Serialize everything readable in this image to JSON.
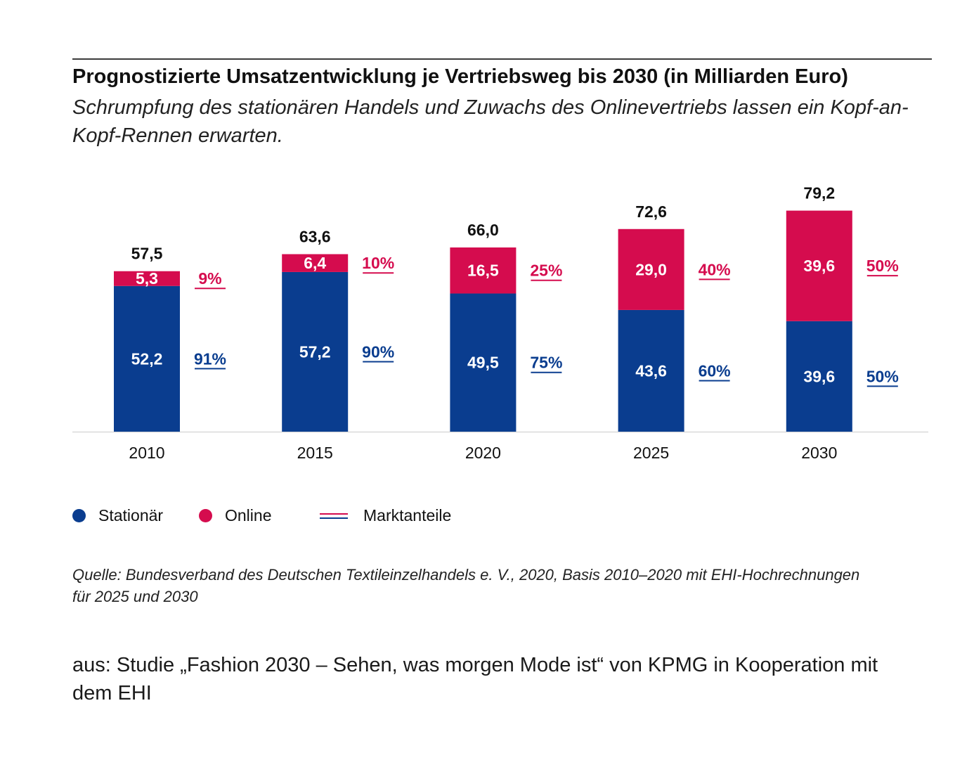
{
  "title": "Prognostizierte Umsatzentwicklung je Vertriebsweg bis 2030 (in Milliarden Euro)",
  "subtitle": "Schrumpfung des stationären Handels und Zuwachs des Onlinevertriebs lassen ein Kopf-an-Kopf-Rennen erwarten.",
  "colors": {
    "stationaer": "#0a3d8f",
    "online": "#d50c4e",
    "baseline": "#d9d9d9",
    "rule": "#3c3c3c"
  },
  "legend": {
    "stationaer": "Stationär",
    "online": "Online",
    "marktanteile": "Marktanteile"
  },
  "source_note": "Quelle: Bundesverband des Deutschen Textileinzelhandels e. V., 2020, Basis 2010–2020 mit EHI-Hochrechnungen für 2025 und 2030",
  "study_credit": "aus: Studie „Fashion 2030 – Sehen, was morgen Mode ist“ von KPMG in Kooperation mit dem EHI",
  "chart_data": {
    "type": "bar",
    "stacked": true,
    "unit": "Milliarden Euro",
    "categories": [
      "2010",
      "2015",
      "2020",
      "2025",
      "2030"
    ],
    "series": [
      {
        "name": "Stationär",
        "values": [
          52.2,
          57.2,
          49.5,
          43.6,
          39.6
        ],
        "labels": [
          "52,2",
          "57,2",
          "49,5",
          "43,6",
          "39,6"
        ],
        "share_labels": [
          "91%",
          "90%",
          "75%",
          "60%",
          "50%"
        ]
      },
      {
        "name": "Online",
        "values": [
          5.3,
          6.4,
          16.5,
          29.0,
          39.6
        ],
        "labels": [
          "5,3",
          "6,4",
          "16,5",
          "29,0",
          "39,6"
        ],
        "share_labels": [
          "9%",
          "10%",
          "25%",
          "40%",
          "50%"
        ]
      }
    ],
    "totals": [
      57.5,
      63.6,
      66.0,
      72.6,
      79.2
    ],
    "total_labels": [
      "57,5",
      "63,6",
      "66,0",
      "72,6",
      "79,2"
    ],
    "ylim": [
      0,
      79.2
    ],
    "grid": false,
    "legend_position": "bottom-left"
  }
}
